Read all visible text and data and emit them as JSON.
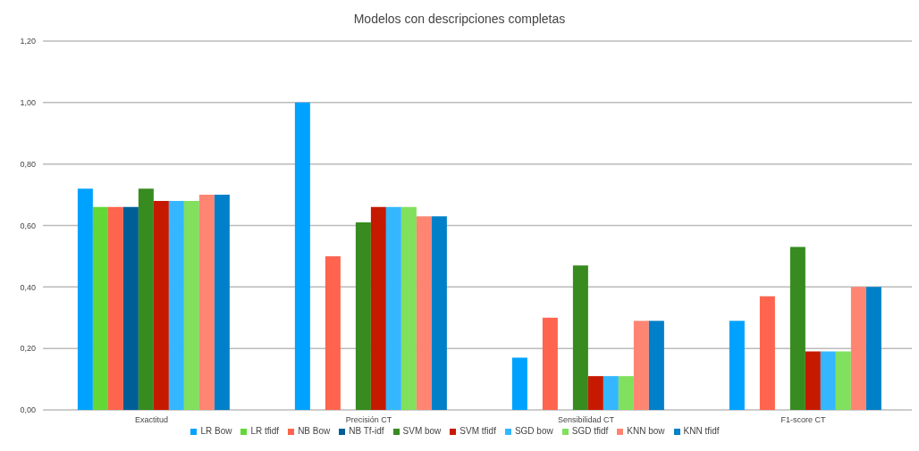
{
  "chart_data": {
    "type": "bar",
    "title": "Modelos con descripciones completas",
    "categories": [
      "Exactitud",
      "Precisión CT",
      "Sensibilidad CT",
      "F1-score CT"
    ],
    "series": [
      {
        "name": "LR Bow",
        "color": "#00a2ff",
        "values": [
          0.72,
          1.0,
          0.17,
          0.29
        ]
      },
      {
        "name": "LR tfidf",
        "color": "#61d836",
        "values": [
          0.66,
          0,
          0,
          0
        ]
      },
      {
        "name": "NB Bow",
        "color": "#ff644e",
        "values": [
          0.66,
          0.5,
          0.3,
          0.37
        ]
      },
      {
        "name": "NB Tf-idf",
        "color": "#005e96",
        "values": [
          0.66,
          0,
          0,
          0
        ]
      },
      {
        "name": "SVM bow",
        "color": "#378b1f",
        "values": [
          0.72,
          0.61,
          0.47,
          0.53
        ]
      },
      {
        "name": "SVM tfidf",
        "color": "#c61a00",
        "values": [
          0.68,
          0.66,
          0.11,
          0.19
        ]
      },
      {
        "name": "SGD bow",
        "color": "#34b7ff",
        "values": [
          0.68,
          0.66,
          0.11,
          0.19
        ]
      },
      {
        "name": "SGD tfidf",
        "color": "#81e05d",
        "values": [
          0.68,
          0.66,
          0.11,
          0.19
        ]
      },
      {
        "name": "KNN bow",
        "color": "#ff8573",
        "values": [
          0.7,
          0.63,
          0.29,
          0.4
        ]
      },
      {
        "name": "KNN tfidf",
        "color": "#0080c8",
        "values": [
          0.7,
          0.63,
          0.29,
          0.4
        ]
      }
    ],
    "ylim": [
      0,
      1.2
    ],
    "yticks": [
      {
        "value": 0,
        "label": "0,00"
      },
      {
        "value": 0.2,
        "label": "0,20"
      },
      {
        "value": 0.4,
        "label": "0,40"
      },
      {
        "value": 0.6,
        "label": "0,60"
      },
      {
        "value": 0.8,
        "label": "0,80"
      },
      {
        "value": 1.0,
        "label": "1,00"
      },
      {
        "value": 1.2,
        "label": "1,20"
      }
    ],
    "grid": "y",
    "legend": "bottom"
  }
}
